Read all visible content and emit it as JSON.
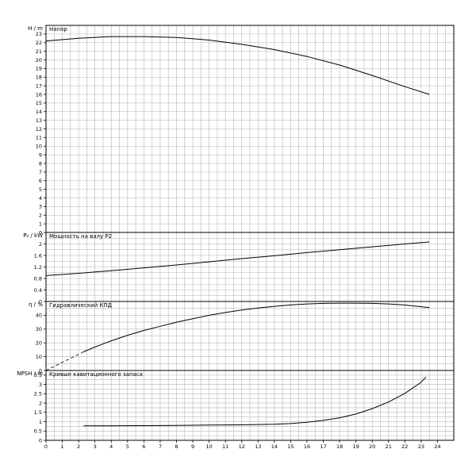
{
  "chart_data": [
    {
      "type": "line",
      "title": "Напор",
      "ylabel": "H / m",
      "xlabel": "Q / m³/h",
      "xlim": [
        0,
        25
      ],
      "ylim": [
        0,
        24
      ],
      "yticks": [
        0,
        1,
        2,
        3,
        4,
        5,
        6,
        7,
        8,
        9,
        10,
        11,
        12,
        13,
        14,
        15,
        16,
        17,
        18,
        19,
        20,
        21,
        22,
        23
      ],
      "grid": true,
      "series": [
        {
          "x": [
            0,
            2,
            4,
            6,
            8,
            10,
            12,
            14,
            16,
            18,
            20,
            22,
            23.5
          ],
          "y": [
            22.2,
            22.5,
            22.7,
            22.7,
            22.6,
            22.3,
            21.8,
            21.2,
            20.4,
            19.4,
            18.2,
            16.9,
            16.0
          ]
        }
      ]
    },
    {
      "type": "line",
      "title": "Мощность на валу P2",
      "ylabel": "P₂ / kW",
      "xlim": [
        0,
        25
      ],
      "ylim": [
        0,
        2.4
      ],
      "yticks": [
        0,
        0.4,
        0.8,
        1.2,
        1.6,
        2
      ],
      "yticklabels": [
        "0",
        "0.4",
        "0.8",
        "1.2",
        "1.6",
        "2"
      ],
      "grid": true,
      "series": [
        {
          "x": [
            0,
            2,
            4,
            6,
            8,
            10,
            12,
            14,
            16,
            18,
            20,
            22,
            23.5
          ],
          "y": [
            0.9,
            0.98,
            1.07,
            1.17,
            1.27,
            1.38,
            1.49,
            1.59,
            1.7,
            1.8,
            1.9,
            2.0,
            2.07
          ]
        }
      ]
    },
    {
      "type": "line",
      "title": "Гидравлический КПД",
      "ylabel": "η / %",
      "xlim": [
        0,
        25
      ],
      "ylim": [
        0,
        50
      ],
      "yticks": [
        0,
        10,
        20,
        30,
        40
      ],
      "grid": true,
      "series": [
        {
          "x": [
            2.3,
            3,
            4,
            5,
            6,
            7,
            8,
            9,
            10,
            11,
            12,
            13,
            14,
            15,
            16,
            17,
            18,
            19,
            20,
            21,
            22,
            23,
            23.5
          ],
          "y": [
            13.5,
            17,
            21.5,
            25.5,
            29,
            32,
            35,
            37.5,
            40,
            42,
            43.8,
            45.3,
            46.5,
            47.5,
            48.2,
            48.6,
            48.8,
            48.8,
            48.6,
            48.2,
            47.4,
            46.2,
            45.5
          ]
        },
        {
          "dashed": true,
          "x": [
            0,
            2.3
          ],
          "y": [
            0,
            13.5
          ]
        }
      ]
    },
    {
      "type": "line",
      "title": "Кривые кавитационного запаса",
      "ylabel": "NPSH / m",
      "xlim": [
        0,
        25
      ],
      "ylim": [
        0,
        3.75
      ],
      "yticks": [
        0,
        0.5,
        1,
        1.5,
        2,
        2.5,
        3,
        3.5
      ],
      "yticklabels": [
        "0",
        "0.5",
        "1",
        "1.5",
        "2",
        "2.5",
        "3",
        "3.5"
      ],
      "grid": true,
      "xticks": [
        0,
        1,
        2,
        3,
        4,
        5,
        6,
        7,
        8,
        9,
        10,
        11,
        12,
        13,
        14,
        15,
        16,
        17,
        18,
        19,
        20,
        21,
        22,
        23,
        24
      ],
      "series": [
        {
          "x": [
            2.3,
            4,
            6,
            8,
            10,
            12,
            14,
            15,
            16,
            17,
            18,
            19,
            20,
            21,
            22,
            23,
            23.3
          ],
          "y": [
            0.78,
            0.78,
            0.79,
            0.8,
            0.82,
            0.83,
            0.86,
            0.9,
            0.97,
            1.07,
            1.21,
            1.41,
            1.7,
            2.06,
            2.52,
            3.12,
            3.4
          ]
        }
      ]
    }
  ]
}
